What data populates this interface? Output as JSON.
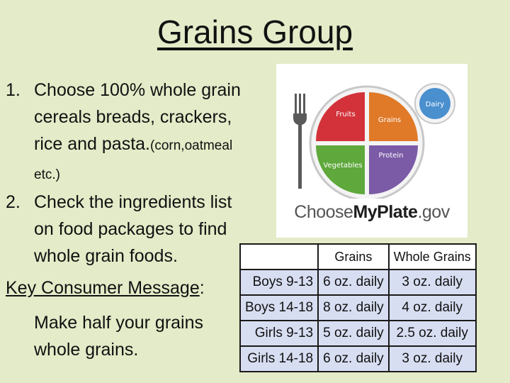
{
  "title": "Grains Group",
  "list": [
    {
      "num": "1.",
      "text": "Choose 100% whole grain cereals breads, crackers, rice and pasta.",
      "small": "(corn,oatmeal etc.)"
    },
    {
      "num": "2.",
      "text": "Check the ingredients list on food packages to find whole grain foods."
    }
  ],
  "key": {
    "label": "Key Consumer Message",
    "colon": ":",
    "message": "Make half your grains whole grains."
  },
  "plate": {
    "labels": {
      "fruits": "Fruits",
      "grains": "Grains",
      "vegetables": "Vegetables",
      "protein": "Protein",
      "dairy": "Dairy"
    },
    "logo_prefix": "Choose",
    "logo_brand": "MyPlate",
    "logo_suffix": ".gov",
    "colors": {
      "fruits": "#d3323a",
      "grains": "#e07a28",
      "vegetables": "#5fa83c",
      "protein": "#7b5aa6",
      "dairy": "#4a8fce"
    }
  },
  "table": {
    "headers": [
      "",
      "Grains",
      "Whole Grains"
    ],
    "rows": [
      {
        "label": "Boys 9-13",
        "grains": "6 oz. daily",
        "whole": "3 oz. daily"
      },
      {
        "label": "Boys 14-18",
        "grains": "8 oz. daily",
        "whole": "4 oz. daily"
      },
      {
        "label": "Girls 9-13",
        "grains": "5 oz. daily",
        "whole": "2.5 oz. daily"
      },
      {
        "label": "Girls 14-18",
        "grains": "6 oz. daily",
        "whole": "3 oz. daily"
      }
    ]
  }
}
